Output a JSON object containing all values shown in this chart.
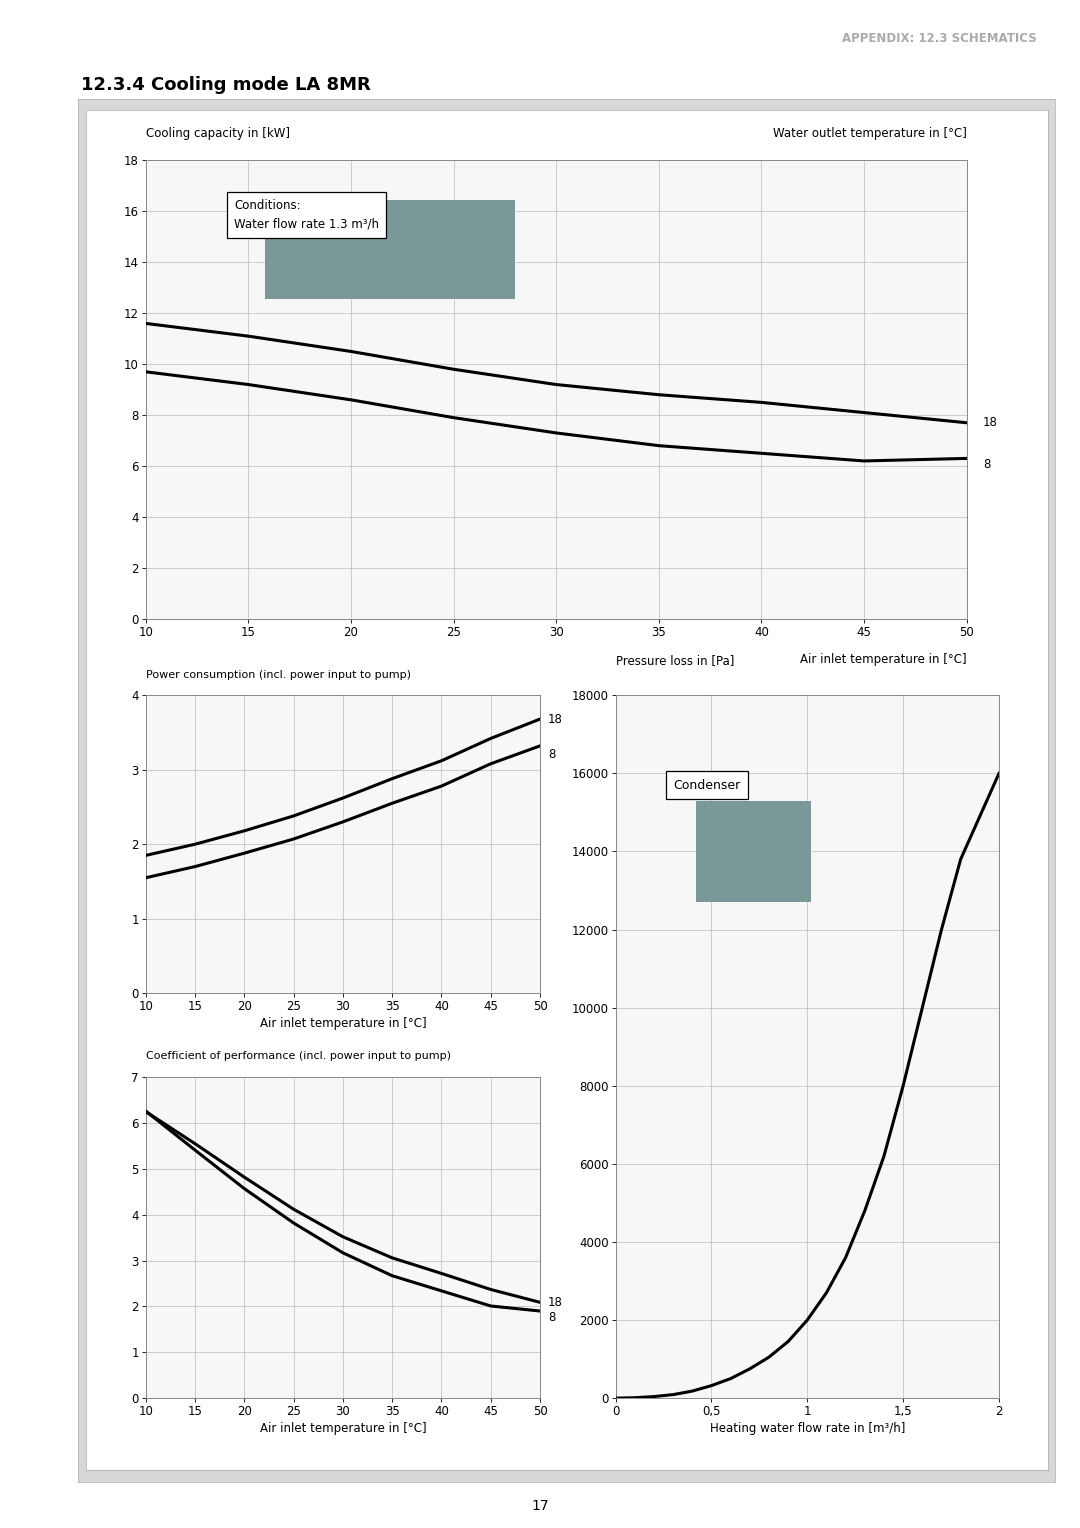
{
  "page_title": "APPENDIX: 12.3 SCHEMATICS",
  "section_title": "12.3.4 Cooling mode LA 8MR",
  "page_number": "17",
  "background_color": "#ffffff",
  "chart1": {
    "title_left": "Cooling capacity in [kW]",
    "title_right": "Water outlet temperature in [°C]",
    "xlabel": "Air inlet temperature in [°C]",
    "xlim": [
      10,
      50
    ],
    "ylim": [
      0,
      18
    ],
    "yticks": [
      0,
      2,
      4,
      6,
      8,
      10,
      12,
      14,
      16,
      18
    ],
    "xticks": [
      10,
      15,
      20,
      25,
      30,
      35,
      40,
      45,
      50
    ],
    "x": [
      10,
      15,
      20,
      25,
      30,
      35,
      40,
      45,
      50
    ],
    "curve18": [
      11.6,
      11.1,
      10.5,
      9.8,
      9.2,
      8.8,
      8.5,
      8.1,
      7.7
    ],
    "curve8": [
      9.7,
      9.2,
      8.6,
      7.9,
      7.3,
      6.8,
      6.5,
      6.2,
      6.3
    ],
    "label18": "18",
    "label8": "8",
    "conditions_text": "Conditions:\nWater flow rate 1.3 m³/h"
  },
  "chart2": {
    "title_left": "Power consumption (incl. power input to pump)",
    "xlabel": "Air inlet temperature in [°C]",
    "xlim": [
      10,
      50
    ],
    "ylim": [
      0,
      4
    ],
    "yticks": [
      0,
      1,
      2,
      3,
      4
    ],
    "xticks": [
      10,
      15,
      20,
      25,
      30,
      35,
      40,
      45,
      50
    ],
    "x": [
      10,
      15,
      20,
      25,
      30,
      35,
      40,
      45,
      50
    ],
    "curve18": [
      1.85,
      2.0,
      2.18,
      2.38,
      2.62,
      2.88,
      3.12,
      3.42,
      3.68
    ],
    "curve8": [
      1.55,
      1.7,
      1.88,
      2.07,
      2.3,
      2.55,
      2.78,
      3.08,
      3.32
    ],
    "label18": "18",
    "label8": "8"
  },
  "chart3": {
    "title_left": "Pressure loss in [Pa]",
    "xlabel": "Heating water flow rate in [m³/h]",
    "xlim": [
      0,
      2
    ],
    "ylim": [
      0,
      18000
    ],
    "yticks": [
      0,
      2000,
      4000,
      6000,
      8000,
      10000,
      12000,
      14000,
      16000,
      18000
    ],
    "xtick_vals": [
      0,
      0.5,
      1.0,
      1.5,
      2.0
    ],
    "xtick_labels": [
      "0",
      "0,5",
      "1",
      "1,5",
      "2"
    ],
    "x": [
      0.0,
      0.1,
      0.2,
      0.3,
      0.4,
      0.5,
      0.6,
      0.7,
      0.8,
      0.9,
      1.0,
      1.1,
      1.2,
      1.3,
      1.4,
      1.5,
      1.6,
      1.7,
      1.8,
      1.9,
      2.0
    ],
    "curve": [
      0,
      10,
      40,
      90,
      180,
      320,
      500,
      750,
      1050,
      1450,
      2000,
      2700,
      3600,
      4800,
      6200,
      8000,
      10000,
      12000,
      13800,
      14900,
      16000
    ],
    "condenser_label": "Condenser"
  },
  "chart4": {
    "title_left": "Coefficient of performance (incl. power input to pump)",
    "xlabel": "Air inlet temperature in [°C]",
    "xlim": [
      10,
      50
    ],
    "ylim": [
      0,
      7
    ],
    "yticks": [
      0,
      1,
      2,
      3,
      4,
      5,
      6,
      7
    ],
    "xticks": [
      10,
      15,
      20,
      25,
      30,
      35,
      40,
      45,
      50
    ],
    "x": [
      10,
      15,
      20,
      25,
      30,
      35,
      40,
      45,
      50
    ],
    "curve18": [
      6.25,
      5.55,
      4.82,
      4.12,
      3.52,
      3.06,
      2.72,
      2.37,
      2.09
    ],
    "curve8": [
      6.26,
      5.41,
      4.57,
      3.82,
      3.17,
      2.67,
      2.34,
      2.01,
      1.9
    ],
    "label18": "18",
    "label8": "8"
  },
  "line_color": "#000000",
  "line_width": 2.2,
  "grid_color": "#bbbbbb",
  "grid_linewidth": 0.5,
  "axis_linewidth": 0.8,
  "facecolor_chart": "#f7f7f7"
}
